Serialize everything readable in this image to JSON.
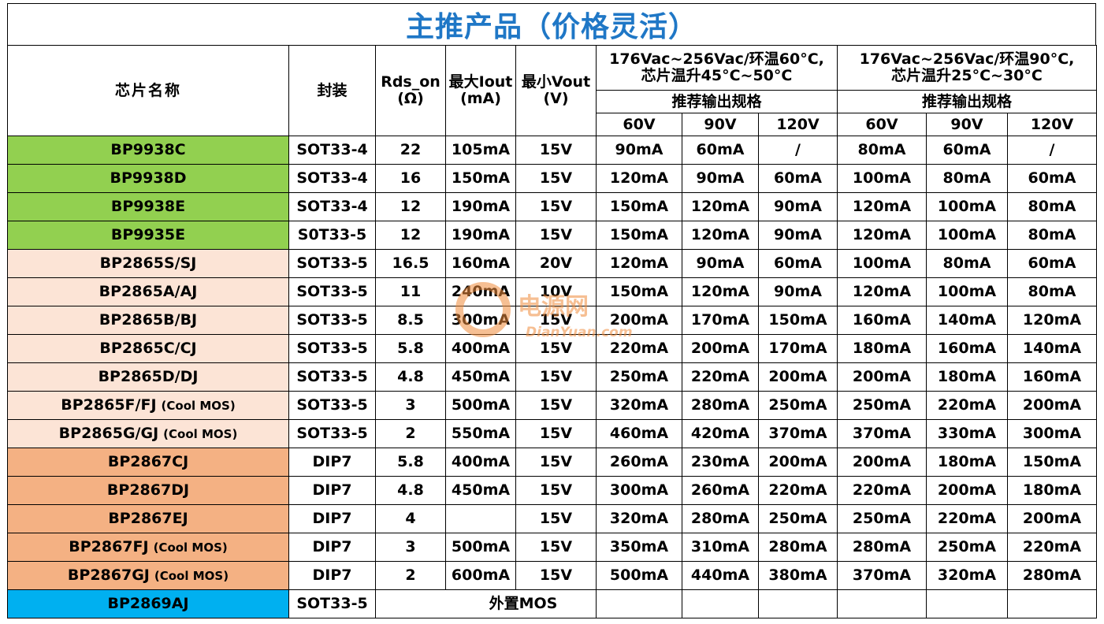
{
  "title": "主推产品（价格灵活）",
  "headers": {
    "name": "芯片名称",
    "package": "封装",
    "rds": "Rds_on",
    "rds_unit": "(Ω)",
    "iout": "最大Iout",
    "iout_unit": "(mA)",
    "vout": "最小Vout",
    "vout_unit": "(V)",
    "cond1_line1": "176Vac~256Vac/环温60°C,",
    "cond1_line2": "芯片温升45°C~50°C",
    "cond2_line1": "176Vac~256Vac/环温90°C,",
    "cond2_line2": "芯片温升25°C~30°C",
    "recommend1": "推荐输出规格",
    "recommend2": "推荐输出规格",
    "volts": [
      "60V",
      "90V",
      "120V",
      "60V",
      "90V",
      "120V"
    ]
  },
  "colors": {
    "green": "#92d050",
    "peach": "#fce4d6",
    "orange": "#f4b183",
    "blue": "#00b0f0",
    "title_blue": "#1f77c6"
  },
  "rows": [
    {
      "name": "BP9938C",
      "cool": "",
      "color": "#92d050",
      "package": "SOT33-4",
      "rds": "22",
      "iout": "105mA",
      "vout": "15V",
      "c1": [
        "90mA",
        "60mA",
        "/"
      ],
      "c2": [
        "80mA",
        "60mA",
        "/"
      ]
    },
    {
      "name": "BP9938D",
      "cool": "",
      "color": "#92d050",
      "package": "SOT33-4",
      "rds": "16",
      "iout": "150mA",
      "vout": "15V",
      "c1": [
        "120mA",
        "90mA",
        "60mA"
      ],
      "c2": [
        "100mA",
        "80mA",
        "60mA"
      ]
    },
    {
      "name": "BP9938E",
      "cool": "",
      "color": "#92d050",
      "package": "SOT33-4",
      "rds": "12",
      "iout": "190mA",
      "vout": "15V",
      "c1": [
        "150mA",
        "120mA",
        "90mA"
      ],
      "c2": [
        "120mA",
        "100mA",
        "80mA"
      ]
    },
    {
      "name": "BP9935E",
      "cool": "",
      "color": "#92d050",
      "package": "S0T33-5",
      "rds": "12",
      "iout": "190mA",
      "vout": "15V",
      "c1": [
        "150mA",
        "120mA",
        "90mA"
      ],
      "c2": [
        "120mA",
        "100mA",
        "80mA"
      ]
    },
    {
      "name": "BP2865S/SJ",
      "cool": "",
      "color": "#fce4d6",
      "package": "SOT33-5",
      "rds": "16.5",
      "iout": "160mA",
      "vout": "20V",
      "c1": [
        "120mA",
        "90mA",
        "60mA"
      ],
      "c2": [
        "100mA",
        "80mA",
        "60mA"
      ]
    },
    {
      "name": "BP2865A/AJ",
      "cool": "",
      "color": "#fce4d6",
      "package": "SOT33-5",
      "rds": "11",
      "iout": "240mA",
      "vout": "10V",
      "c1": [
        "150mA",
        "120mA",
        "90mA"
      ],
      "c2": [
        "120mA",
        "100mA",
        "80mA"
      ]
    },
    {
      "name": "BP2865B/BJ",
      "cool": "",
      "color": "#fce4d6",
      "package": "SOT33-5",
      "rds": "8.5",
      "iout": "300mA",
      "vout": "15V",
      "c1": [
        "200mA",
        "170mA",
        "150mA"
      ],
      "c2": [
        "160mA",
        "140mA",
        "120mA"
      ]
    },
    {
      "name": "BP2865C/CJ",
      "cool": "",
      "color": "#fce4d6",
      "package": "SOT33-5",
      "rds": "5.8",
      "iout": "400mA",
      "vout": "15V",
      "c1": [
        "220mA",
        "200mA",
        "170mA"
      ],
      "c2": [
        "180mA",
        "160mA",
        "140mA"
      ]
    },
    {
      "name": "BP2865D/DJ",
      "cool": "",
      "color": "#fce4d6",
      "package": "SOT33-5",
      "rds": "4.8",
      "iout": "450mA",
      "vout": "15V",
      "c1": [
        "250mA",
        "220mA",
        "200mA"
      ],
      "c2": [
        "200mA",
        "180mA",
        "160mA"
      ]
    },
    {
      "name": "BP2865F/FJ",
      "cool": "(Cool MOS)",
      "color": "#fce4d6",
      "package": "SOT33-5",
      "rds": "3",
      "iout": "500mA",
      "vout": "15V",
      "c1": [
        "320mA",
        "280mA",
        "250mA"
      ],
      "c2": [
        "250mA",
        "220mA",
        "200mA"
      ]
    },
    {
      "name": "BP2865G/GJ",
      "cool": "(Cool MOS)",
      "color": "#fce4d6",
      "package": "SOT33-5",
      "rds": "2",
      "iout": "550mA",
      "vout": "15V",
      "c1": [
        "460mA",
        "420mA",
        "370mA"
      ],
      "c2": [
        "370mA",
        "330mA",
        "300mA"
      ]
    },
    {
      "name": "BP2867CJ",
      "cool": "",
      "color": "#f4b183",
      "package": "DIP7",
      "rds": "5.8",
      "iout": "400mA",
      "vout": "15V",
      "c1": [
        "260mA",
        "230mA",
        "200mA"
      ],
      "c2": [
        "200mA",
        "180mA",
        "150mA"
      ]
    },
    {
      "name": "BP2867DJ",
      "cool": "",
      "color": "#f4b183",
      "package": "DIP7",
      "rds": "4.8",
      "iout": "450mA",
      "vout": "15V",
      "c1": [
        "300mA",
        "260mA",
        "220mA"
      ],
      "c2": [
        "220mA",
        "200mA",
        "180mA"
      ]
    },
    {
      "name": "BP2867EJ",
      "cool": "",
      "color": "#f4b183",
      "package": "DIP7",
      "rds": "4",
      "iout": "",
      "vout": "15V",
      "c1": [
        "320mA",
        "280mA",
        "250mA"
      ],
      "c2": [
        "250mA",
        "220mA",
        "200mA"
      ]
    },
    {
      "name": "BP2867FJ",
      "cool": "(Cool MOS)",
      "color": "#f4b183",
      "package": "DIP7",
      "rds": "3",
      "iout": "500mA",
      "vout": "15V",
      "c1": [
        "350mA",
        "310mA",
        "280mA"
      ],
      "c2": [
        "280mA",
        "250mA",
        "220mA"
      ]
    },
    {
      "name": "BP2867GJ",
      "cool": "(Cool MOS)",
      "color": "#f4b183",
      "package": "DIP7",
      "rds": "2",
      "iout": "600mA",
      "vout": "15V",
      "c1": [
        "500mA",
        "440mA",
        "380mA"
      ],
      "c2": [
        "370mA",
        "320mA",
        "280mA"
      ]
    }
  ],
  "last_row": {
    "name": "BP2869AJ",
    "color": "#00b0f0",
    "package": "SOT33-5",
    "note": "外置MOS"
  },
  "watermark": {
    "cn": "电源网",
    "en": "DianYuan.com"
  }
}
